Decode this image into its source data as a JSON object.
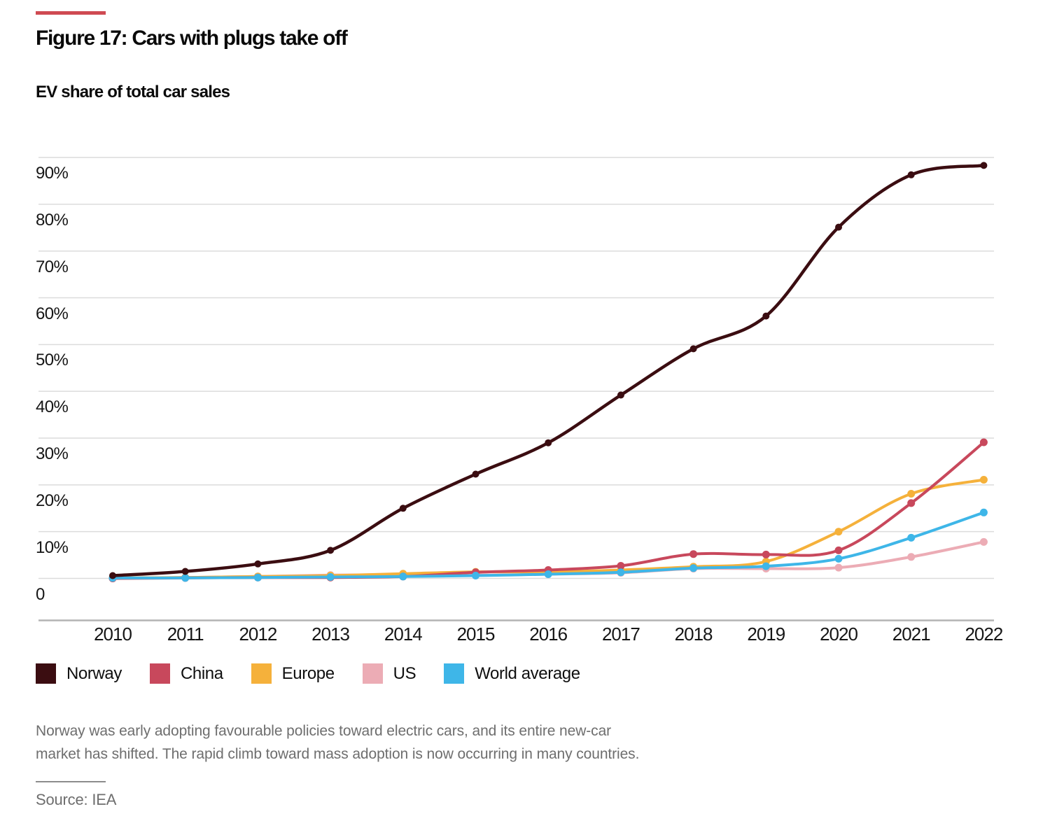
{
  "figure": {
    "accent_color": "#cf4a52",
    "title": "Figure 17: Cars with plugs take off",
    "subtitle": "EV share of total car sales"
  },
  "chart_data": {
    "type": "line",
    "title": "EV share of total car sales",
    "x": [
      2010,
      2011,
      2012,
      2013,
      2014,
      2015,
      2016,
      2017,
      2018,
      2019,
      2020,
      2021,
      2022
    ],
    "xtick_labels": [
      "2010",
      "2011",
      "2012",
      "2013",
      "2014",
      "2015",
      "2016",
      "2017",
      "2018",
      "2019",
      "2020",
      "2021",
      "2022"
    ],
    "series": [
      {
        "name": "Norway",
        "color": "#3b0d11",
        "values": [
          0.6,
          1.5,
          3.1,
          6.0,
          15.0,
          22.3,
          29.0,
          39.2,
          49.1,
          56.1,
          75.1,
          86.3,
          88.3
        ]
      },
      {
        "name": "China",
        "color": "#c8485c",
        "values": [
          0.0,
          0.1,
          0.2,
          0.2,
          0.4,
          1.3,
          1.8,
          2.7,
          5.2,
          5.1,
          6.0,
          16.1,
          29.1
        ]
      },
      {
        "name": "Europe",
        "color": "#f5b13b",
        "values": [
          0.1,
          0.2,
          0.4,
          0.6,
          1.0,
          1.4,
          1.4,
          1.8,
          2.5,
          3.6,
          10.0,
          18.1,
          21.1
        ]
      },
      {
        "name": "US",
        "color": "#ecacb5",
        "values": [
          0.0,
          0.2,
          0.4,
          0.7,
          0.8,
          0.7,
          0.9,
          1.2,
          2.1,
          2.1,
          2.3,
          4.6,
          7.8
        ]
      },
      {
        "name": "World average",
        "color": "#3eb6e8",
        "values": [
          0.1,
          0.1,
          0.2,
          0.3,
          0.4,
          0.6,
          0.9,
          1.3,
          2.2,
          2.6,
          4.2,
          8.7,
          14.1
        ]
      }
    ],
    "draw_order": [
      "US",
      "Europe",
      "China",
      "World average",
      "Norway"
    ],
    "ylim": [
      0,
      94
    ],
    "yticks": [
      {
        "value": 0,
        "label": "0"
      },
      {
        "value": 10,
        "label": "10%"
      },
      {
        "value": 20,
        "label": "20%"
      },
      {
        "value": 30,
        "label": "30%"
      },
      {
        "value": 40,
        "label": "40%"
      },
      {
        "value": 50,
        "label": "50%"
      },
      {
        "value": 60,
        "label": "60%"
      },
      {
        "value": 70,
        "label": "70%"
      },
      {
        "value": 80,
        "label": "80%"
      },
      {
        "value": 90,
        "label": "90%"
      }
    ],
    "grid": "horizontal",
    "legend_position": "bottom"
  },
  "footer": {
    "line1": "Norway was early adopting favourable policies toward electric cars, and its entire new-car",
    "line2": "market has shifted. The rapid climb toward mass adoption is now occurring in many countries.",
    "source": "Source: IEA"
  }
}
